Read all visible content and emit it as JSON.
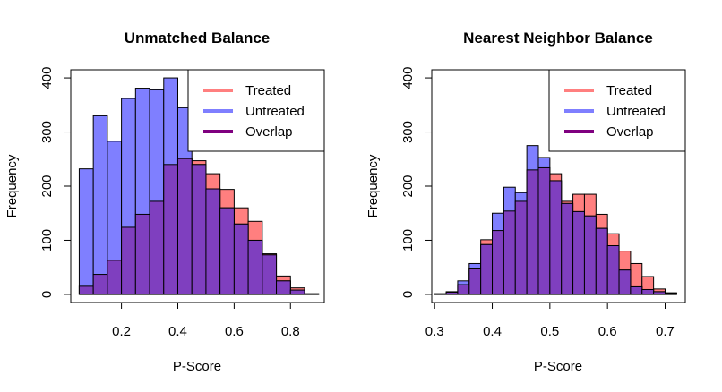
{
  "colors": {
    "treated": "#ff7f7f",
    "untreated": "#7f7fff",
    "overlap": "#7f3fbf",
    "overlap_legend": "#7f007f"
  },
  "chart_data": [
    {
      "type": "bar",
      "title": "Unmatched Balance",
      "xlabel": "P-Score",
      "ylabel": "Frequency",
      "xlim": [
        0.02,
        0.92
      ],
      "ylim": [
        -15,
        415
      ],
      "xticks": [
        0.2,
        0.4,
        0.6,
        0.8
      ],
      "xtick_labels": [
        "0.2",
        "0.4",
        "0.6",
        "0.8"
      ],
      "yticks": [
        0,
        100,
        200,
        300,
        400
      ],
      "ytick_labels": [
        "0",
        "100",
        "200",
        "300",
        "400"
      ],
      "bin_width": 0.05,
      "bin_starts": [
        0.05,
        0.1,
        0.15,
        0.2,
        0.25,
        0.3,
        0.35,
        0.4,
        0.45,
        0.5,
        0.55,
        0.6,
        0.65,
        0.7,
        0.75,
        0.8,
        0.85
      ],
      "axis_line": [
        0.05,
        0.9
      ],
      "legend_position": "top-right",
      "series": [
        {
          "name": "Treated",
          "color_key": "treated",
          "values": [
            15,
            37,
            63,
            124,
            148,
            172,
            240,
            251,
            247,
            223,
            194,
            160,
            135,
            75,
            34,
            12,
            1
          ]
        },
        {
          "name": "Untreated",
          "color_key": "untreated",
          "values": [
            232,
            330,
            283,
            362,
            381,
            378,
            400,
            345,
            240,
            195,
            160,
            130,
            100,
            73,
            25,
            8,
            1
          ]
        },
        {
          "name": "Overlap",
          "color_key": "overlap_legend"
        }
      ]
    },
    {
      "type": "bar",
      "title": "Nearest Neighbor Balance",
      "xlabel": "P-Score",
      "ylabel": "Frequency",
      "xlim": [
        0.295,
        0.735
      ],
      "ylim": [
        -15,
        415
      ],
      "xticks": [
        0.3,
        0.4,
        0.5,
        0.6,
        0.7
      ],
      "xtick_labels": [
        "0.3",
        "0.4",
        "0.5",
        "0.6",
        "0.7"
      ],
      "yticks": [
        0,
        100,
        200,
        300,
        400
      ],
      "ytick_labels": [
        "0",
        "100",
        "200",
        "300",
        "400"
      ],
      "bin_width": 0.02,
      "bin_starts": [
        0.3,
        0.32,
        0.34,
        0.36,
        0.38,
        0.4,
        0.42,
        0.44,
        0.46,
        0.48,
        0.5,
        0.52,
        0.54,
        0.56,
        0.58,
        0.6,
        0.62,
        0.64,
        0.66,
        0.68,
        0.7
      ],
      "axis_line": [
        0.3,
        0.72
      ],
      "legend_position": "top-right",
      "series": [
        {
          "name": "Treated",
          "color_key": "treated",
          "values": [
            1,
            5,
            18,
            47,
            101,
            118,
            154,
            172,
            230,
            234,
            223,
            172,
            185,
            185,
            148,
            112,
            80,
            57,
            33,
            10,
            3
          ]
        },
        {
          "name": "Untreated",
          "color_key": "untreated",
          "values": [
            1,
            4,
            25,
            57,
            92,
            150,
            198,
            188,
            275,
            253,
            210,
            168,
            153,
            145,
            122,
            90,
            45,
            14,
            9,
            5,
            2
          ]
        },
        {
          "name": "Overlap",
          "color_key": "overlap_legend"
        }
      ]
    }
  ]
}
